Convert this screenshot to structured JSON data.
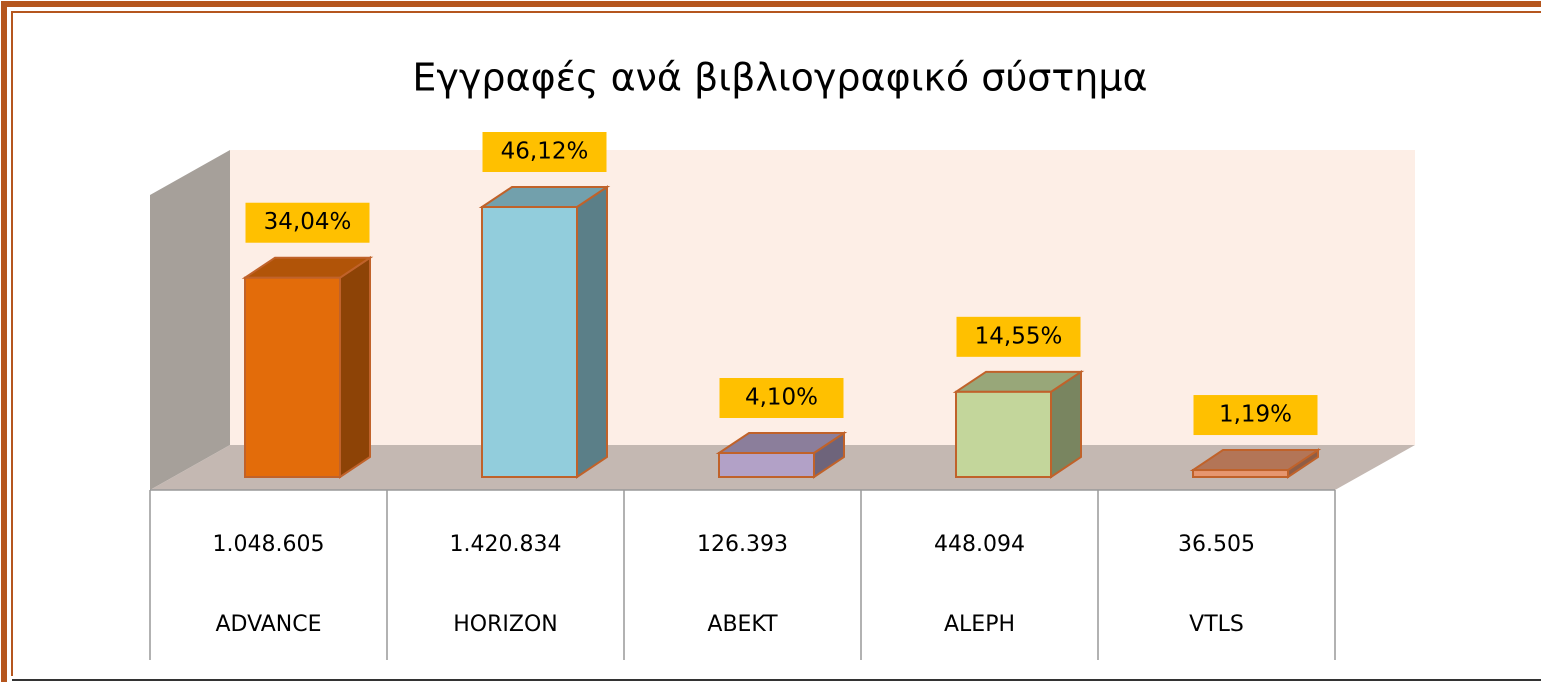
{
  "chart_data": {
    "type": "bar3d",
    "title": "Εγγραφές ανά βιβλιογραφικό σύστημα",
    "categories": [
      "ADVANCE",
      "HORIZON",
      "ABEKT",
      "ALEPH",
      "VTLS"
    ],
    "values": [
      34.04,
      46.12,
      4.1,
      14.55,
      1.19
    ],
    "value_labels": [
      "34,04%",
      "46,12%",
      "4,10%",
      "14,55%",
      "1,19%"
    ],
    "table_row": [
      "1.048.605",
      "1.420.834",
      "126.393",
      "448.094",
      "36.505"
    ],
    "colors": [
      "#e36c0a",
      "#92cddc",
      "#b2a1c7",
      "#c3d69b",
      "#e6966f"
    ],
    "label_color": "#ffc000"
  }
}
